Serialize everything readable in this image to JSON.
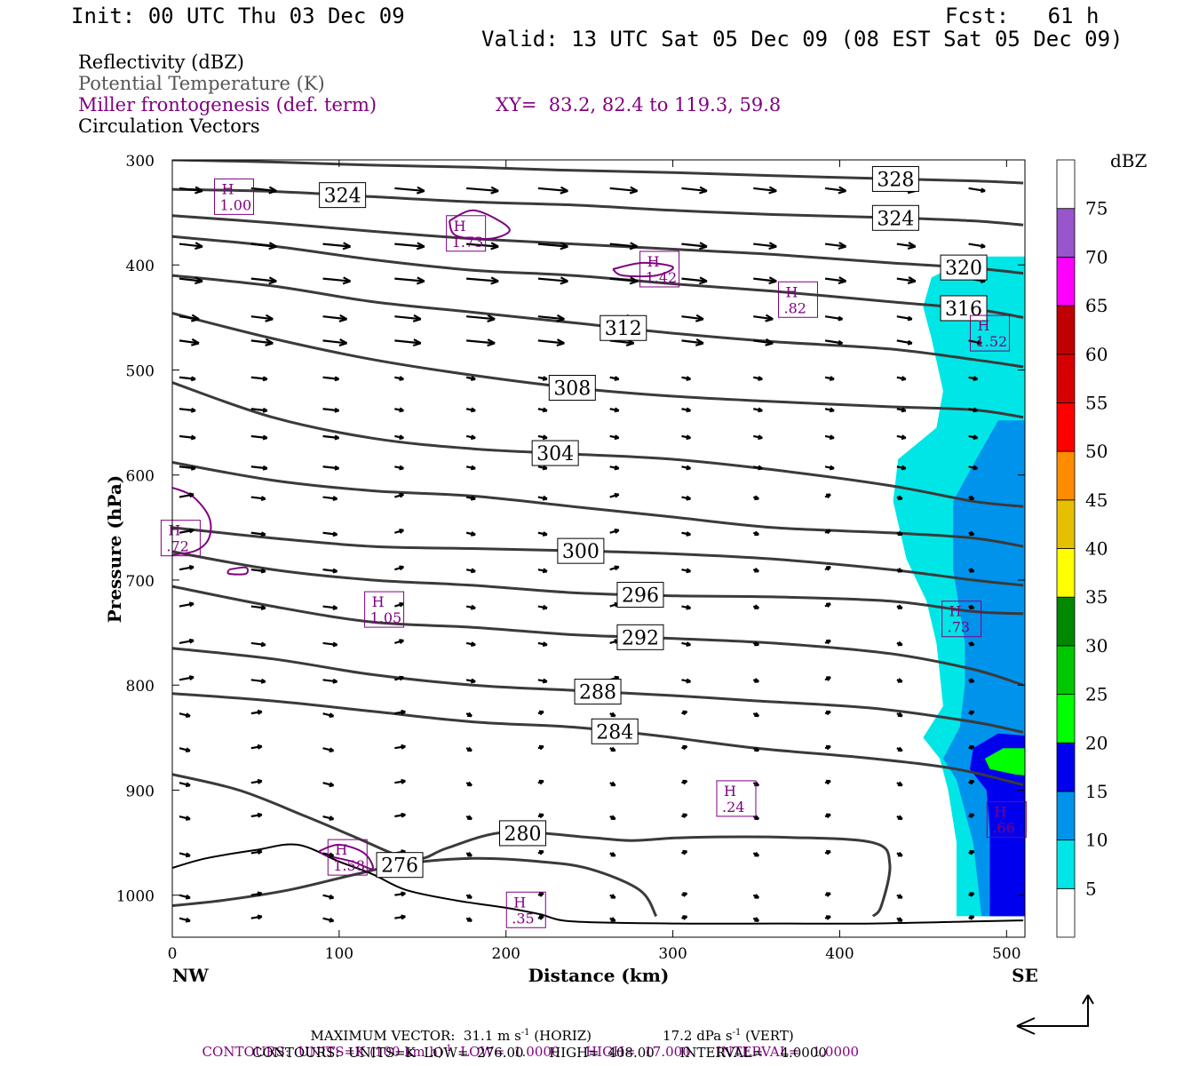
{
  "header": {
    "init": "Init: 00 UTC Thu 03 Dec 09",
    "fcst": "Fcst:   61 h",
    "valid": "Valid: 13 UTC Sat 05 Dec 09 (08 EST Sat 05 Dec 09)"
  },
  "fields": {
    "reflectivity": "Reflectivity (dBZ)",
    "theta": "Potential Temperature (K)",
    "frontogenesis": "Miller frontogenesis (def. term)",
    "xy": "XY=  83.2, 82.4 to 119.3, 59.8",
    "vectors": "Circulation Vectors"
  },
  "colors": {
    "purple": "#800080",
    "theta_line": "#3a3a3a",
    "terrain": "#000000"
  },
  "chart_data": {
    "type": "cross-section",
    "xlabel": "Distance (km)",
    "ylabel": "Pressure (hPa)",
    "xlim": [
      0,
      511
    ],
    "ylim": [
      1040,
      300
    ],
    "x_ticks": [
      0,
      100,
      200,
      300,
      400,
      500
    ],
    "y_ticks": [
      300,
      400,
      500,
      600,
      700,
      800,
      900,
      1000
    ],
    "x_end_labels": {
      "left": "NW",
      "right": "SE"
    },
    "colorbar": {
      "unit": "dBZ",
      "levels": [
        5,
        10,
        15,
        20,
        25,
        30,
        35,
        40,
        45,
        50,
        55,
        60,
        65,
        70,
        75
      ],
      "colors": [
        "#ffffff",
        "#00e6e6",
        "#0093ec",
        "#0000ee",
        "#00ff00",
        "#00c800",
        "#008800",
        "#ffff00",
        "#e6c000",
        "#ff8c00",
        "#ff0000",
        "#d60000",
        "#c00000",
        "#ff00ff",
        "#9955cc",
        "#ffffff"
      ]
    },
    "theta_contours": [
      {
        "label": "276",
        "points": [
          [
            0,
            1010
          ],
          [
            30,
            1005
          ],
          [
            70,
            995
          ],
          [
            110,
            980
          ],
          [
            140,
            970
          ],
          [
            180,
            965
          ],
          [
            220,
            968
          ],
          [
            250,
            975
          ],
          [
            280,
            995
          ],
          [
            290,
            1020
          ]
        ]
      },
      {
        "label": "280",
        "points": [
          [
            0,
            885
          ],
          [
            40,
            900
          ],
          [
            80,
            925
          ],
          [
            110,
            945
          ],
          [
            135,
            962
          ],
          [
            150,
            965
          ],
          [
            165,
            955
          ],
          [
            200,
            940
          ],
          [
            250,
            945
          ],
          [
            275,
            948
          ],
          [
            310,
            945
          ],
          [
            370,
            945
          ],
          [
            420,
            950
          ],
          [
            430,
            970
          ],
          [
            425,
            1010
          ],
          [
            420,
            1020
          ]
        ]
      },
      {
        "label": "284",
        "points": [
          [
            0,
            808
          ],
          [
            60,
            815
          ],
          [
            120,
            825
          ],
          [
            180,
            835
          ],
          [
            240,
            840
          ],
          [
            290,
            848
          ],
          [
            350,
            860
          ],
          [
            420,
            870
          ],
          [
            470,
            880
          ],
          [
            510,
            895
          ]
        ]
      },
      {
        "label": "288",
        "points": [
          [
            0,
            765
          ],
          [
            60,
            775
          ],
          [
            120,
            790
          ],
          [
            180,
            800
          ],
          [
            240,
            805
          ],
          [
            300,
            810
          ],
          [
            350,
            815
          ],
          [
            420,
            822
          ],
          [
            480,
            835
          ],
          [
            510,
            845
          ]
        ]
      },
      {
        "label": "292",
        "points": [
          [
            0,
            706
          ],
          [
            60,
            725
          ],
          [
            120,
            740
          ],
          [
            180,
            745
          ],
          [
            240,
            752
          ],
          [
            290,
            755
          ],
          [
            360,
            760
          ],
          [
            430,
            770
          ],
          [
            480,
            785
          ],
          [
            510,
            800
          ]
        ]
      },
      {
        "label": "296",
        "points": [
          [
            0,
            673
          ],
          [
            60,
            690
          ],
          [
            120,
            700
          ],
          [
            180,
            705
          ],
          [
            240,
            712
          ],
          [
            300,
            715
          ],
          [
            360,
            716
          ],
          [
            430,
            720
          ],
          [
            480,
            730
          ],
          [
            510,
            732
          ]
        ]
      },
      {
        "label": "300",
        "points": [
          [
            0,
            650
          ],
          [
            60,
            660
          ],
          [
            120,
            668
          ],
          [
            180,
            670
          ],
          [
            240,
            672
          ],
          [
            300,
            675
          ],
          [
            360,
            680
          ],
          [
            430,
            690
          ],
          [
            480,
            700
          ],
          [
            510,
            705
          ]
        ]
      },
      {
        "label": "",
        "points": [
          [
            0,
            588
          ],
          [
            60,
            605
          ],
          [
            120,
            615
          ],
          [
            180,
            620
          ],
          [
            240,
            630
          ],
          [
            300,
            640
          ],
          [
            360,
            650
          ],
          [
            430,
            655
          ],
          [
            480,
            660
          ],
          [
            510,
            668
          ]
        ]
      },
      {
        "label": "304",
        "points": [
          [
            0,
            512
          ],
          [
            60,
            545
          ],
          [
            120,
            565
          ],
          [
            180,
            575
          ],
          [
            240,
            580
          ],
          [
            300,
            585
          ],
          [
            360,
            595
          ],
          [
            430,
            610
          ],
          [
            480,
            625
          ],
          [
            510,
            630
          ]
        ]
      },
      {
        "label": "308",
        "points": [
          [
            0,
            446
          ],
          [
            60,
            470
          ],
          [
            120,
            490
          ],
          [
            180,
            505
          ],
          [
            240,
            517
          ],
          [
            300,
            525
          ],
          [
            360,
            530
          ],
          [
            430,
            535
          ],
          [
            480,
            538
          ],
          [
            510,
            545
          ]
        ]
      },
      {
        "label": "312",
        "points": [
          [
            0,
            410
          ],
          [
            60,
            420
          ],
          [
            120,
            435
          ],
          [
            180,
            445
          ],
          [
            240,
            455
          ],
          [
            300,
            465
          ],
          [
            360,
            473
          ],
          [
            430,
            480
          ],
          [
            480,
            490
          ],
          [
            510,
            497
          ]
        ]
      },
      {
        "label": "316",
        "points": [
          [
            0,
            373
          ],
          [
            60,
            382
          ],
          [
            120,
            395
          ],
          [
            180,
            405
          ],
          [
            240,
            410
          ],
          [
            300,
            418
          ],
          [
            360,
            425
          ],
          [
            430,
            435
          ],
          [
            480,
            442
          ],
          [
            510,
            450
          ]
        ]
      },
      {
        "label": "320",
        "points": [
          [
            0,
            353
          ],
          [
            60,
            360
          ],
          [
            120,
            368
          ],
          [
            180,
            375
          ],
          [
            240,
            380
          ],
          [
            300,
            385
          ],
          [
            360,
            390
          ],
          [
            430,
            398
          ],
          [
            480,
            403
          ],
          [
            510,
            408
          ]
        ]
      },
      {
        "label": "324",
        "points": [
          [
            0,
            328
          ],
          [
            60,
            330
          ],
          [
            120,
            335
          ],
          [
            180,
            340
          ],
          [
            240,
            343
          ],
          [
            300,
            348
          ],
          [
            360,
            352
          ],
          [
            430,
            355
          ],
          [
            480,
            358
          ],
          [
            510,
            362
          ]
        ]
      },
      {
        "label": "328",
        "points": [
          [
            0,
            300
          ],
          [
            60,
            302
          ],
          [
            120,
            305
          ],
          [
            180,
            307
          ],
          [
            240,
            310
          ],
          [
            300,
            312
          ],
          [
            360,
            315
          ],
          [
            430,
            318
          ],
          [
            480,
            320
          ],
          [
            510,
            322
          ]
        ]
      }
    ],
    "frontogenesis_maxima": [
      {
        "label": "H",
        "value": "1.00",
        "x": 37,
        "p": 335
      },
      {
        "label": "H",
        "value": "1.73",
        "x": 176,
        "p": 370
      },
      {
        "label": "H",
        "value": "1.42",
        "x": 292,
        "p": 404
      },
      {
        "label": "H",
        "value": ".82",
        "x": 375,
        "p": 433
      },
      {
        "label": "H",
        "value": "1.52",
        "x": 490,
        "p": 465
      },
      {
        "label": "H",
        "value": ".72",
        "x": 5,
        "p": 660
      },
      {
        "label": "H",
        "value": "1.05",
        "x": 127,
        "p": 728
      },
      {
        "label": "H",
        "value": ".73",
        "x": 473,
        "p": 737
      },
      {
        "label": "H",
        "value": ".24",
        "x": 338,
        "p": 908
      },
      {
        "label": "H",
        "value": ".66",
        "x": 500,
        "p": 928
      },
      {
        "label": "H",
        "value": "1.58",
        "x": 105,
        "p": 964
      },
      {
        "label": "H",
        "value": ".35",
        "x": 212,
        "p": 1014
      }
    ],
    "terrain": [
      [
        0,
        974
      ],
      [
        20,
        965
      ],
      [
        50,
        957
      ],
      [
        75,
        952
      ],
      [
        100,
        968
      ],
      [
        120,
        980
      ],
      [
        140,
        995
      ],
      [
        170,
        1005
      ],
      [
        200,
        1012
      ],
      [
        220,
        1018
      ],
      [
        240,
        1025
      ],
      [
        300,
        1027
      ],
      [
        360,
        1027
      ],
      [
        420,
        1027
      ],
      [
        480,
        1025
      ],
      [
        510,
        1024
      ]
    ]
  },
  "footer": {
    "max_vector": "MAXIMUM VECTOR:  31.1 m s",
    "max_vector_sup": "-1",
    "max_vector_horiz": " (HORIZ)",
    "max_vector_vert": "17.2 dPa s",
    "max_vector_vert_sup": "-1",
    "max_vector_vert_tail": " (VERT)",
    "contours_purple": "CONTOURS:  UNITS=K (100 km h)",
    "contours_purple_sup": "-1",
    "contours_purple_tail": "  LOW=  1.0000      HIGH=  17.000      INTERVAL=   1.0000",
    "contours_black": "CONTOURS:  UNITS=K  LOW=  276.00      HIGH=  408.00      INTERVAL=    4.0000"
  }
}
